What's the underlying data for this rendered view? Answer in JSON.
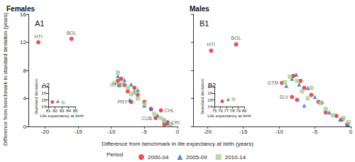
{
  "shared": {
    "x_label": "Difference from benchmark in life expectancy at birth (years)",
    "y_label": "Difference from benchmark in standard deviation (years)",
    "legend_title": "Period"
  },
  "chart_data": [
    {
      "type": "scatter",
      "title": "Females",
      "panel": "A1",
      "xlim": [
        -22.5,
        0
      ],
      "xticks": [
        -20,
        -15,
        -10,
        -5,
        0
      ],
      "ylim": [
        0,
        16
      ],
      "yticks": [
        0,
        4,
        8,
        12,
        16
      ],
      "series": [
        {
          "name": "2000-04",
          "color": "#e3242b",
          "marker": "circle",
          "values": [
            [
              -21,
              12
            ],
            [
              -16,
              12.5
            ],
            [
              -8,
              5.9
            ],
            [
              -7,
              3.5
            ],
            [
              -9,
              6.5
            ],
            [
              -7.5,
              5
            ],
            [
              -6,
              4.5
            ],
            [
              -5,
              3.5
            ],
            [
              -4,
              2.5
            ],
            [
              -2.5,
              2.3
            ],
            [
              -3.3,
              1.2
            ],
            [
              -1.5,
              0.6
            ],
            [
              -2,
              0.3
            ],
            [
              -6.5,
              5.5
            ],
            [
              -8.5,
              6.8
            ]
          ]
        },
        {
          "name": "2005-09",
          "color": "#2e75b6",
          "marker": "triangle",
          "values": [
            [
              -9,
              7.2
            ],
            [
              -8,
              6.6
            ],
            [
              -7,
              6.0
            ],
            [
              -6.5,
              5
            ],
            [
              -7.2,
              3.8
            ],
            [
              -5,
              3
            ],
            [
              -4,
              2.5
            ],
            [
              -3,
              1.6
            ],
            [
              -2,
              1.0
            ],
            [
              -1.5,
              0.4
            ],
            [
              -6,
              5.2
            ],
            [
              -8.8,
              5.9
            ]
          ]
        },
        {
          "name": "2010-14",
          "color": "#a9d18e",
          "marker": "square",
          "values": [
            [
              -9.5,
              6.2
            ],
            [
              -8.5,
              6
            ],
            [
              -7.5,
              5.5
            ],
            [
              -7,
              4.6
            ],
            [
              -6,
              4
            ],
            [
              -5,
              3.2
            ],
            [
              -3.5,
              1.8
            ],
            [
              -2.5,
              1.2
            ],
            [
              -2,
              0.8
            ],
            [
              -1,
              0.3
            ],
            [
              -9,
              7.7
            ],
            [
              -6.5,
              4.8
            ]
          ]
        }
      ],
      "annotations": [
        {
          "text": "HTI",
          "x": -21,
          "y": 12
        },
        {
          "text": "BOL",
          "x": -16,
          "y": 12.5
        },
        {
          "text": "GTM",
          "x": -8,
          "y": 5.9
        },
        {
          "text": "PRY",
          "x": -7,
          "y": 3.5
        },
        {
          "text": "CHL",
          "x": -2.5,
          "y": 2.3
        },
        {
          "text": "CUB",
          "x": -3.3,
          "y": 1.2
        },
        {
          "text": "CRI",
          "x": -1.5,
          "y": 0.6
        }
      ]
    },
    {
      "type": "scatter",
      "panel": "A2",
      "x_label": "Life expectancy at birth",
      "y_label": "Standard deviation",
      "xlim": [
        81,
        85
      ],
      "xticks": [
        81,
        82,
        83,
        84,
        85
      ],
      "ylim": [
        14,
        17
      ],
      "yticks": [
        14,
        15,
        16,
        17
      ],
      "series": [
        {
          "name": "2000-04",
          "color": "#e3242b",
          "marker": "circle",
          "values": [
            [
              81.6,
              14.7
            ]
          ]
        },
        {
          "name": "2005-09",
          "color": "#2e75b6",
          "marker": "triangle",
          "values": [
            [
              82.4,
              14.8
            ]
          ]
        },
        {
          "name": "2010-14",
          "color": "#a9d18e",
          "marker": "square",
          "values": [
            [
              83.2,
              14.6
            ]
          ]
        }
      ]
    },
    {
      "type": "scatter",
      "title": "Males",
      "panel": "B1",
      "tick_labels": "x",
      "xlim": [
        -22,
        0
      ],
      "xticks": [
        -20,
        -15,
        -10,
        -5,
        0
      ],
      "ylim": [
        0,
        16
      ],
      "yticks": [
        0,
        4,
        8,
        12,
        16
      ],
      "series": [
        {
          "name": "2000-04",
          "color": "#e3242b",
          "marker": "circle",
          "values": [
            [
              -19.5,
              10.8
            ],
            [
              -16,
              11.7
            ],
            [
              -9.6,
              6.2
            ],
            [
              -8.2,
              4.2
            ],
            [
              -8,
              7.2
            ],
            [
              -7,
              6.5
            ],
            [
              -6.5,
              5.5
            ],
            [
              -5.5,
              4.5
            ],
            [
              -4.5,
              3.5
            ],
            [
              -3.5,
              2
            ],
            [
              -2,
              1.5
            ],
            [
              -1.2,
              1
            ],
            [
              -0.5,
              0.3
            ],
            [
              -7.5,
              3.8
            ]
          ]
        },
        {
          "name": "2005-09",
          "color": "#2e75b6",
          "marker": "triangle",
          "values": [
            [
              -8.2,
              6.8
            ],
            [
              -7.2,
              6
            ],
            [
              -6,
              5.5
            ],
            [
              -5,
              4.2
            ],
            [
              -4,
              3.5
            ],
            [
              -3,
              2
            ],
            [
              -1.5,
              1
            ],
            [
              -0.4,
              0.3
            ],
            [
              -9,
              5.8
            ],
            [
              -7.6,
              7.4
            ],
            [
              -6.5,
              3
            ]
          ]
        },
        {
          "name": "2010-14",
          "color": "#a9d18e",
          "marker": "square",
          "values": [
            [
              -8.5,
              7.1
            ],
            [
              -7.5,
              6.5
            ],
            [
              -6.8,
              5
            ],
            [
              -5.5,
              5.5
            ],
            [
              -4.2,
              3.3
            ],
            [
              -3.5,
              2.5
            ],
            [
              -2.5,
              1.6
            ],
            [
              -1,
              1.2
            ],
            [
              -0.3,
              0.6
            ],
            [
              -9.2,
              6.3
            ],
            [
              -6,
              4
            ]
          ]
        }
      ],
      "annotations": [
        {
          "text": "HTI",
          "x": -19.5,
          "y": 10.8
        },
        {
          "text": "BOL",
          "x": -16,
          "y": 11.7
        },
        {
          "text": "GTM",
          "x": -9.6,
          "y": 6.2
        },
        {
          "text": "SLV",
          "x": -8.2,
          "y": 4.2
        }
      ]
    },
    {
      "type": "scatter",
      "panel": "B2",
      "x_label": "Life expectancy at birth",
      "y_label": "Standard deviation",
      "xlim": [
        75,
        80
      ],
      "xticks": [
        75,
        76,
        77,
        78,
        79,
        80
      ],
      "ylim": [
        14,
        17
      ],
      "yticks": [
        14,
        15,
        16,
        17
      ],
      "series": [
        {
          "name": "2000-04",
          "color": "#e3242b",
          "marker": "circle",
          "values": [
            [
              76.3,
              14.8
            ]
          ]
        },
        {
          "name": "2005-09",
          "color": "#2e75b6",
          "marker": "triangle",
          "values": [
            [
              77.3,
              15.1
            ]
          ]
        },
        {
          "name": "2010-14",
          "color": "#a9d18e",
          "marker": "square",
          "values": [
            [
              78.2,
              15.1
            ]
          ]
        }
      ]
    }
  ]
}
